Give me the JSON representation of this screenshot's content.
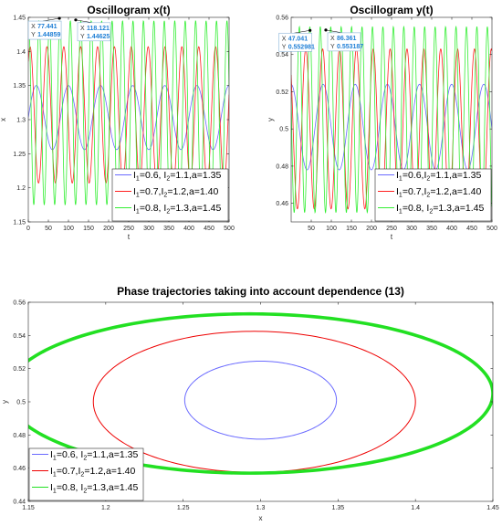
{
  "chart_data": [
    {
      "type": "line",
      "id": "p1",
      "title": "Oscillogram x(t)",
      "xlabel": "t",
      "ylabel": "x",
      "xlim": [
        0,
        500
      ],
      "ylim": [
        1.15,
        1.45
      ],
      "xticks": [
        0,
        50,
        100,
        150,
        200,
        250,
        300,
        350,
        400,
        450,
        500
      ],
      "xticklabels": [
        "0",
        "50",
        "100",
        "150",
        "200",
        "250",
        "300",
        "350",
        "400",
        "450",
        "500"
      ],
      "yticks": [
        1.15,
        1.2,
        1.25,
        1.3,
        1.35,
        1.4,
        1.45
      ],
      "yticklabels": [
        "1.15",
        "1.2",
        "1.25",
        "1.3",
        "1.35",
        "1.4",
        "1.45"
      ],
      "grid": false,
      "legend_loc": "bottom-right",
      "series": [
        {
          "name": "I1=0.6, I2=1.1, a=1.35",
          "color": "#6a6aff",
          "center": 1.303,
          "amp": 0.047,
          "period": 80,
          "phase": 0.0
        },
        {
          "name": "I1=0.7, I2=1.2, a=1.40",
          "color": "#ff2020",
          "center": 1.307,
          "amp": 0.1,
          "period": 42,
          "phase": 0.9
        },
        {
          "name": "I1=0.8, I2=1.3, a=1.45",
          "color": "#33ee33",
          "center": 1.31,
          "amp": 0.135,
          "period": 26,
          "phase": 1.4
        }
      ],
      "legend": [
        {
          "i1": "0.6",
          "i2": "1.1",
          "a": "1.35",
          "sep": ", "
        },
        {
          "i1": "0.7",
          "i2": "1.2",
          "a": "1.40",
          "sep": ","
        },
        {
          "i1": "0.8",
          "i2": "1.3",
          "a": "1.45",
          "sep": ", "
        }
      ],
      "datatips": [
        {
          "x": 77.441,
          "y": 1.44859,
          "xtext": "77.441",
          "ytext": "1.44859"
        },
        {
          "x": 118.121,
          "y": 1.44625,
          "xtext": "118.121",
          "ytext": "1.44625"
        }
      ]
    },
    {
      "type": "line",
      "id": "p2",
      "title": "Oscillogram y(t)",
      "xlabel": "t",
      "ylabel": "y",
      "xlim": [
        0,
        500
      ],
      "ylim": [
        0.45,
        0.56
      ],
      "xticks": [
        50,
        100,
        150,
        200,
        250,
        300,
        350,
        400,
        450,
        500
      ],
      "xticklabels": [
        "50",
        "100",
        "150",
        "200",
        "250",
        "300",
        "350",
        "400",
        "450",
        "500"
      ],
      "yticks": [
        0.46,
        0.48,
        0.5,
        0.52,
        0.54,
        0.56
      ],
      "yticklabels": [
        "0.46",
        "0.48",
        "0.5",
        "0.52",
        "0.54",
        "0.56"
      ],
      "grid": false,
      "legend_loc": "bottom-right",
      "series": [
        {
          "name": "I1=0.6, I2=1.1, a=1.35",
          "color": "#6a6aff",
          "center": 0.501,
          "amp": 0.023,
          "period": 80,
          "phase": 1.6
        },
        {
          "name": "I1=0.7, I2=1.2, a=1.40",
          "color": "#ff2020",
          "center": 0.5,
          "amp": 0.043,
          "period": 42,
          "phase": 2.4
        },
        {
          "name": "I1=0.8, I2=1.3, a=1.45",
          "color": "#33ee33",
          "center": 0.505,
          "amp": 0.05,
          "period": 26,
          "phase": 2.9
        }
      ],
      "legend": [
        {
          "i1": "0.6",
          "i2": "1.1",
          "a": "1.35",
          "sep": ","
        },
        {
          "i1": "0.7",
          "i2": "1.2",
          "a": "1.40",
          "sep": ","
        },
        {
          "i1": "0.8",
          "i2": "1.3",
          "a": "1.45",
          "sep": ", "
        }
      ],
      "datatips": [
        {
          "x": 47.041,
          "y": 0.552981,
          "xtext": "47.041",
          "ytext": "0.552981"
        },
        {
          "x": 86.361,
          "y": 0.553187,
          "xtext": "86.361",
          "ytext": "0.553187"
        }
      ]
    },
    {
      "type": "line",
      "id": "p3",
      "title": "Phase trajectories taking into account dependence (13)",
      "xlabel": "x",
      "ylabel": "y",
      "xlim": [
        1.15,
        1.45
      ],
      "ylim": [
        0.44,
        0.56
      ],
      "xticks": [
        1.15,
        1.2,
        1.25,
        1.3,
        1.35,
        1.4,
        1.45
      ],
      "xticklabels": [
        "1.15",
        "1.2",
        "1.25",
        "1.3",
        "1.35",
        "1.4",
        "1.45"
      ],
      "yticks": [
        0.44,
        0.46,
        0.48,
        0.5,
        0.52,
        0.54,
        0.56
      ],
      "yticklabels": [
        "0.44",
        "0.46",
        "0.48",
        "0.5",
        "0.52",
        "0.54",
        "0.56"
      ],
      "grid": false,
      "legend_loc": "bottom-left",
      "series": [
        {
          "name": "I1=0.6, I2=1.1, a=1.35",
          "color": "#6a6aff",
          "cx": 1.3,
          "cy": 0.501,
          "rx": 0.049,
          "ry": 0.0235
        },
        {
          "name": "I1=0.7, I2=1.2, a=1.40",
          "color": "#ee0000",
          "cx": 1.296,
          "cy": 0.5,
          "rx": 0.104,
          "ry": 0.0425
        },
        {
          "name": "I1=0.8, I2=1.3, a=1.45",
          "color": "#22e022",
          "cx": 1.293,
          "cy": 0.505,
          "rx": 0.157,
          "ry": 0.048
        }
      ],
      "legend": [
        {
          "i1": "0.6",
          "i2": "1.1",
          "a": "1.35",
          "sep": ", "
        },
        {
          "i1": "0.7",
          "i2": "1.2",
          "a": "1.40",
          "sep": ","
        },
        {
          "i1": "0.8",
          "i2": "1.3",
          "a": "1.45",
          "sep": ", "
        }
      ]
    }
  ]
}
